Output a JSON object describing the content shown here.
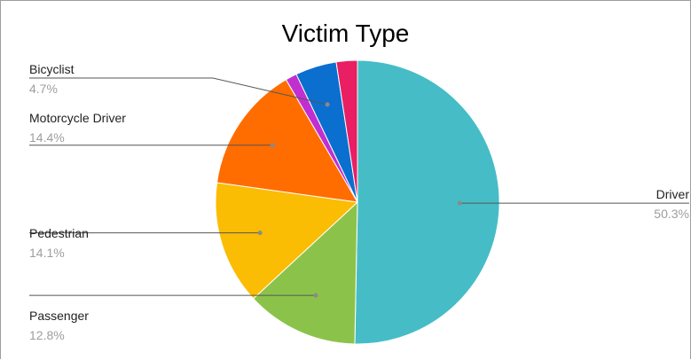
{
  "chart_data": {
    "type": "pie",
    "title": "Victim Type",
    "slices": [
      {
        "label": "Driver",
        "value": 50.3,
        "display": "50.3%",
        "color": "#46bdc6"
      },
      {
        "label": "Passenger",
        "value": 12.8,
        "display": "12.8%",
        "color": "#8bc34a"
      },
      {
        "label": "Pedestrian",
        "value": 14.1,
        "display": "14.1%",
        "color": "#fbbc04"
      },
      {
        "label": "Motorcycle Driver",
        "value": 14.4,
        "display": "14.4%",
        "color": "#ff6d01"
      },
      {
        "label": "",
        "value": 1.3,
        "display": "",
        "color": "#c12fd0"
      },
      {
        "label": "Bicyclist",
        "value": 4.7,
        "display": "4.7%",
        "color": "#0b6fcf"
      },
      {
        "label": "",
        "value": 2.4,
        "display": "",
        "color": "#e91e63"
      }
    ],
    "legend": "none",
    "start": "top, clockwise"
  }
}
